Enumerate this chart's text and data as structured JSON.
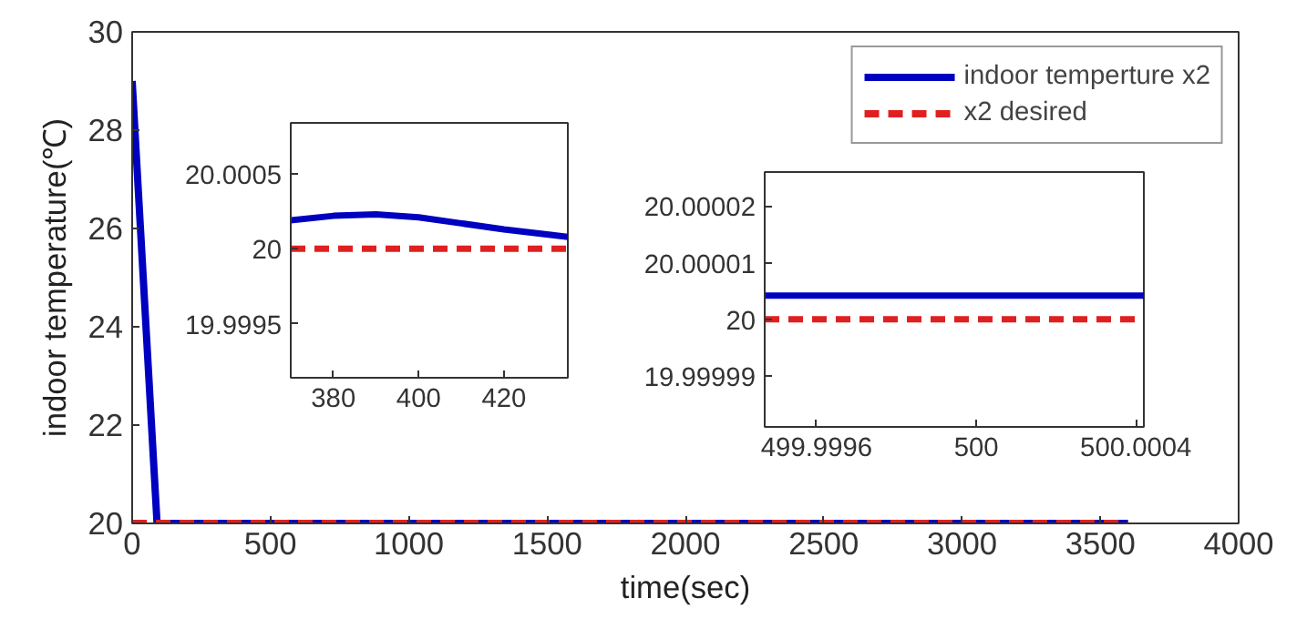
{
  "chart_data": [
    {
      "type": "line",
      "xlabel": "time(sec)",
      "ylabel": "indoor temperature(℃)",
      "xlim": [
        0,
        4000
      ],
      "ylim": [
        20,
        30
      ],
      "xticks": [
        0,
        500,
        1000,
        1500,
        2000,
        2500,
        3000,
        3500,
        4000
      ],
      "yticks": [
        20,
        22,
        24,
        26,
        28,
        30
      ],
      "grid": false,
      "legend": "top right",
      "series": [
        {
          "name": "indoor temperture x2",
          "color": "#0000c0",
          "line_style": "solid",
          "x": [
            0,
            90,
            3600
          ],
          "values": [
            29,
            20,
            20
          ]
        },
        {
          "name": "x2 desired",
          "color": "#e02020",
          "line_style": "dashed",
          "x": [
            0,
            3600
          ],
          "values": [
            20,
            20
          ]
        }
      ]
    },
    {
      "type": "line",
      "xlim": [
        370,
        435
      ],
      "ylim": [
        19.99914,
        20.00084
      ],
      "xticks": [
        380,
        400,
        420
      ],
      "yticks": [
        19.9995,
        20,
        20.0005
      ],
      "grid": false,
      "series": [
        {
          "color": "#0000c0",
          "line_style": "solid",
          "x": [
            370,
            380,
            390,
            400,
            410,
            420,
            435
          ],
          "values": [
            20.00019,
            20.00022,
            20.00023,
            20.00021,
            20.00017,
            20.00013,
            20.00008
          ]
        },
        {
          "color": "#e02020",
          "line_style": "dashed",
          "x": [
            370,
            435
          ],
          "values": [
            20,
            20
          ]
        }
      ]
    },
    {
      "type": "line",
      "xlim": [
        499.99947,
        500.00042
      ],
      "ylim": [
        19.999981,
        20.000026
      ],
      "xticks": [
        499.9996,
        500,
        500.0004
      ],
      "yticks": [
        19.99999,
        20,
        20.00001,
        20.00002
      ],
      "grid": false,
      "series": [
        {
          "color": "#0000c0",
          "line_style": "solid",
          "x": [
            499.99947,
            500.00042
          ],
          "values": [
            20.0000042,
            20.0000042
          ]
        },
        {
          "color": "#e02020",
          "line_style": "dashed",
          "x": [
            499.99947,
            500.00042
          ],
          "values": [
            20,
            20
          ]
        }
      ]
    }
  ]
}
